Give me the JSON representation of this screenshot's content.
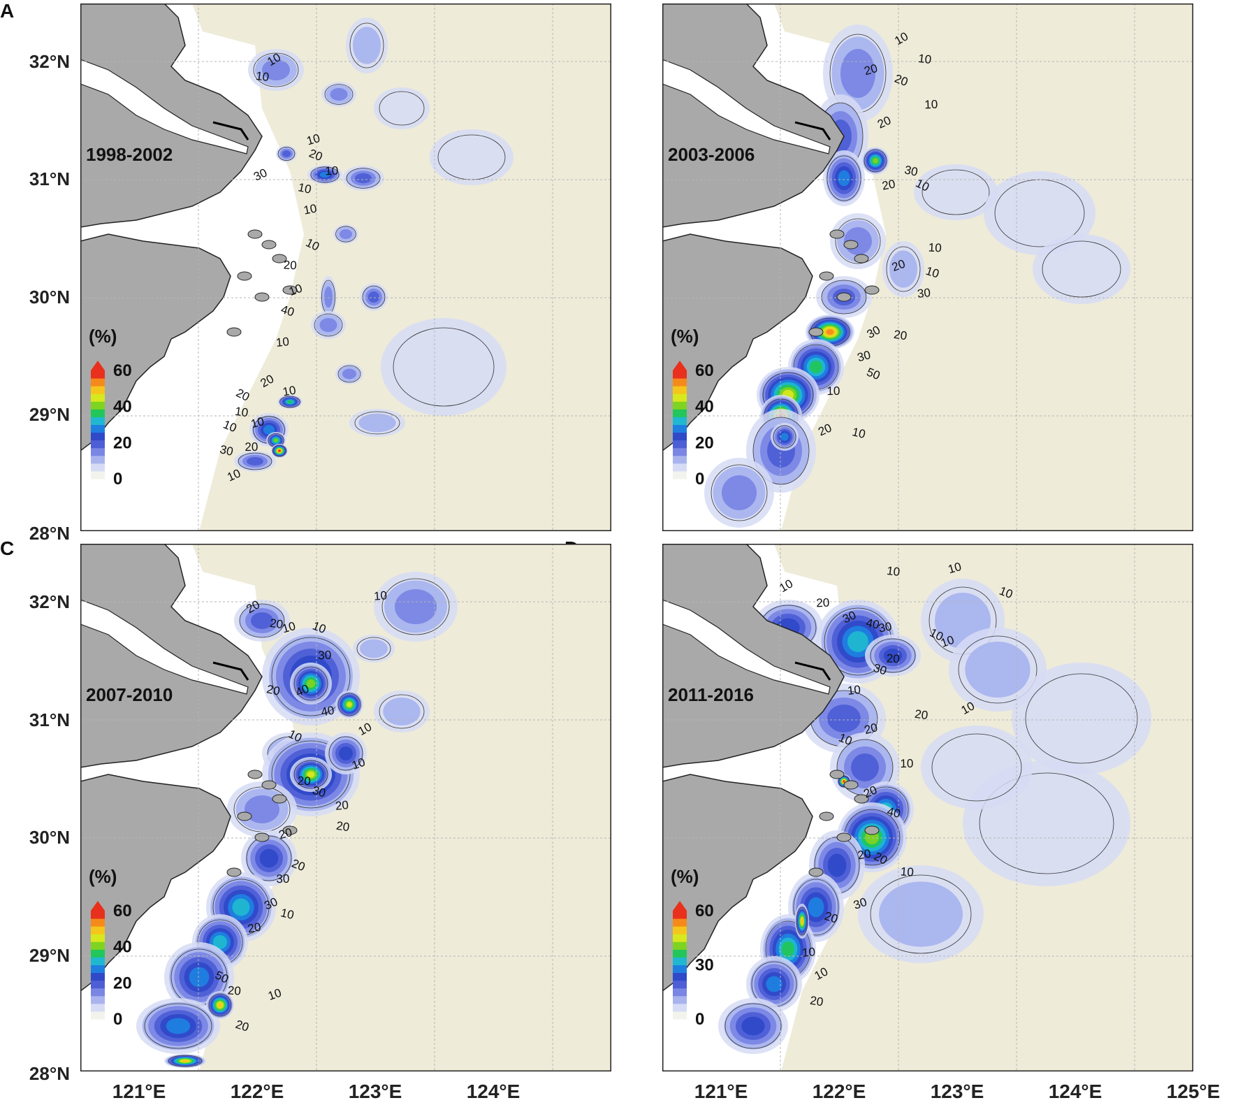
{
  "panels": [
    {
      "letter": "A",
      "period": "1998-2002",
      "colorbar": {
        "unit": "(%)",
        "ticks": [
          "60",
          "40",
          "20",
          "0"
        ]
      },
      "contour_labels": [
        "10",
        "10",
        "10",
        "20",
        "10",
        "30",
        "10",
        "10",
        "10",
        "20",
        "10",
        "40",
        "10",
        "20",
        "10",
        "10",
        "10",
        "20",
        "10",
        "30",
        "10",
        "20"
      ]
    },
    {
      "letter": "B",
      "period": "2003-2006",
      "colorbar": {
        "unit": "(%)",
        "ticks": [
          "60",
          "40",
          "20",
          "0"
        ]
      },
      "contour_labels": [
        "10",
        "10",
        "20",
        "20",
        "10",
        "20",
        "30",
        "20",
        "10",
        "10",
        "20",
        "10",
        "30",
        "30",
        "20",
        "30",
        "50",
        "10",
        "20",
        "10"
      ]
    },
    {
      "letter": "C",
      "period": "2007-2010",
      "colorbar": {
        "unit": "(%)",
        "ticks": [
          "60",
          "40",
          "20",
          "0"
        ]
      },
      "contour_labels": [
        "20",
        "20",
        "10",
        "10",
        "30",
        "40",
        "20",
        "40",
        "10",
        "20",
        "10",
        "30",
        "20",
        "10",
        "20",
        "20",
        "20",
        "30",
        "30",
        "10",
        "20",
        "50",
        "20",
        "10",
        "20",
        "10"
      ]
    },
    {
      "letter": "D",
      "period": "2011-2016",
      "colorbar": {
        "unit": "(%)",
        "ticks": [
          "60",
          "30",
          "0"
        ]
      },
      "contour_labels": [
        "10",
        "10",
        "10",
        "10",
        "20",
        "30",
        "40",
        "30",
        "10",
        "20",
        "10",
        "30",
        "10",
        "10",
        "20",
        "20",
        "10",
        "10",
        "20",
        "40",
        "20",
        "20",
        "10",
        "30",
        "20",
        "10",
        "10",
        "20"
      ]
    }
  ],
  "axes": {
    "lat_ticks": [
      "32°N",
      "31°N",
      "30°N",
      "29°N",
      "28°N"
    ],
    "lon_ticks_left": [
      "121°E",
      "122°E",
      "123°E",
      "124°E"
    ],
    "lon_ticks_right": [
      "121°E",
      "122°E",
      "123°E",
      "124°E",
      "125°E"
    ]
  },
  "colors": {
    "land": "#a9a9a9",
    "sea_background": "#eeebd9",
    "no_data": "#ffffff",
    "colormap": [
      "#f3f3ee",
      "#d6dcf5",
      "#a9b4ee",
      "#7a86e4",
      "#4e5fd6",
      "#2f49c9",
      "#1f7fe0",
      "#20b8d0",
      "#22c65a",
      "#7fd321",
      "#d7e81d",
      "#f5c51b",
      "#f58a1b",
      "#e8301d"
    ]
  }
}
